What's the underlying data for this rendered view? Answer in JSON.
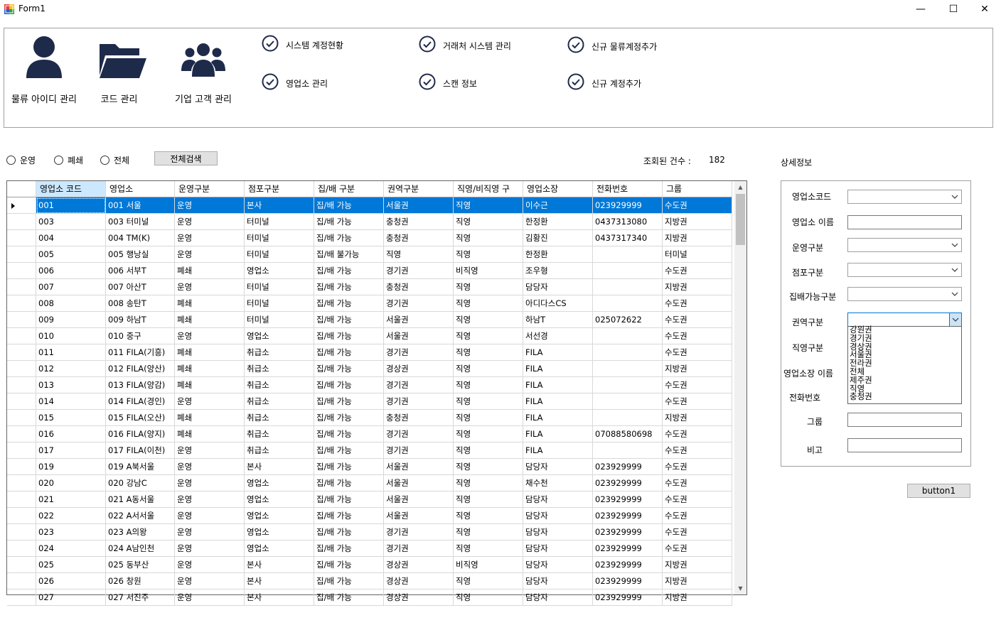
{
  "window": {
    "title": "Form1",
    "minimize_glyph": "—",
    "maximize_glyph": "☐",
    "close_glyph": "✕"
  },
  "nav": {
    "big_buttons": [
      {
        "label": "물류 아이디 관리",
        "icon": "user-icon"
      },
      {
        "label": "코드 관리",
        "icon": "folder-icon"
      },
      {
        "label": "기업 고객 관리",
        "icon": "users-group-icon"
      }
    ],
    "check_items": [
      {
        "label": "시스템 계정현황"
      },
      {
        "label": "거래처 시스템 관리"
      },
      {
        "label": "신규 물류계정추가"
      },
      {
        "label": "영업소 관리"
      },
      {
        "label": "스캔 정보"
      },
      {
        "label": "신규 계정추가"
      }
    ]
  },
  "filters": {
    "radios": [
      "운영",
      "폐쇄",
      "전체"
    ],
    "search_button": "전체검색",
    "count_label": "조회된 건수 :",
    "count_value": "182"
  },
  "grid": {
    "columns": [
      "영업소 코드",
      "영업소",
      "운영구분",
      "점포구분",
      "집/배 구분",
      "권역구분",
      "직영/비직영 구",
      "영업소장",
      "전화번호",
      "그룹"
    ],
    "rows": [
      [
        "001",
        "001 서울",
        "운영",
        "본사",
        "집/배 가능",
        "서울권",
        "직영",
        "이수근",
        "023929999",
        "수도권"
      ],
      [
        "003",
        "003 터미널",
        "운영",
        "터미널",
        "집/배 가능",
        "충청권",
        "직영",
        "한정환",
        "0437313080",
        "지방권"
      ],
      [
        "004",
        "004 TM(K)",
        "운영",
        "터미널",
        "집/배 가능",
        "충청권",
        "직영",
        "김황진",
        "0437317340",
        "지방권"
      ],
      [
        "005",
        "005 행낭실",
        "운영",
        "터미널",
        "집/배 불가능",
        "직영",
        "직영",
        "한정환",
        "",
        "터미널"
      ],
      [
        "006",
        "006 서부T",
        "폐쇄",
        "영업소",
        "집/배 가능",
        "경기권",
        "비직영",
        "조우형",
        "",
        "수도권"
      ],
      [
        "007",
        "007 아산T",
        "운영",
        "터미널",
        "집/배 가능",
        "충청권",
        "직영",
        "담당자",
        "",
        "지방권"
      ],
      [
        "008",
        "008 송탄T",
        "폐쇄",
        "터미널",
        "집/배 가능",
        "경기권",
        "직영",
        "아디다스CS",
        "",
        "수도권"
      ],
      [
        "009",
        "009 하남T",
        "폐쇄",
        "터미널",
        "집/배 가능",
        "서울권",
        "직영",
        "하남T",
        "025072622",
        "수도권"
      ],
      [
        "010",
        "010 중구",
        "운영",
        "영업소",
        "집/배 가능",
        "서울권",
        "직영",
        "서선경",
        "",
        "수도권"
      ],
      [
        "011",
        "011 FILA(기흥)",
        "폐쇄",
        "취급소",
        "집/배 가능",
        "경기권",
        "직영",
        "FILA",
        "",
        "수도권"
      ],
      [
        "012",
        "012 FILA(양산)",
        "폐쇄",
        "취급소",
        "집/배 가능",
        "경상권",
        "직영",
        "FILA",
        "",
        "지방권"
      ],
      [
        "013",
        "013 FILA(양감)",
        "폐쇄",
        "취급소",
        "집/배 가능",
        "경기권",
        "직영",
        "FILA",
        "",
        "수도권"
      ],
      [
        "014",
        "014 FILA(경인)",
        "운영",
        "취급소",
        "집/배 가능",
        "경기권",
        "직영",
        "FILA",
        "",
        "수도권"
      ],
      [
        "015",
        "015 FILA(오산)",
        "폐쇄",
        "취급소",
        "집/배 가능",
        "충청권",
        "직영",
        "FILA",
        "",
        "지방권"
      ],
      [
        "016",
        "016 FILA(양지)",
        "폐쇄",
        "취급소",
        "집/배 가능",
        "경기권",
        "직영",
        "FILA",
        "07088580698",
        "수도권"
      ],
      [
        "017",
        "017 FILA(이천)",
        "운영",
        "취급소",
        "집/배 가능",
        "경기권",
        "직영",
        "FILA",
        "",
        "수도권"
      ],
      [
        "019",
        "019 A북서울",
        "운영",
        "본사",
        "집/배 가능",
        "서울권",
        "직영",
        "담당자",
        "023929999",
        "수도권"
      ],
      [
        "020",
        "020 강남C",
        "운영",
        "영업소",
        "집/배 가능",
        "서울권",
        "직영",
        "채수천",
        "023929999",
        "수도권"
      ],
      [
        "021",
        "021 A동서울",
        "운영",
        "영업소",
        "집/배 가능",
        "서울권",
        "직영",
        "담당자",
        "023929999",
        "수도권"
      ],
      [
        "022",
        "022 A서서울",
        "운영",
        "영업소",
        "집/배 가능",
        "서울권",
        "직영",
        "담당자",
        "023929999",
        "수도권"
      ],
      [
        "023",
        "023 A의왕",
        "운영",
        "영업소",
        "집/배 가능",
        "경기권",
        "직영",
        "담당자",
        "023929999",
        "수도권"
      ],
      [
        "024",
        "024 A남인천",
        "운영",
        "영업소",
        "집/배 가능",
        "경기권",
        "직영",
        "담당자",
        "023929999",
        "수도권"
      ],
      [
        "025",
        "025 동부산",
        "운영",
        "본사",
        "집/배 가능",
        "경상권",
        "비직영",
        "담당자",
        "023929999",
        "지방권"
      ],
      [
        "026",
        "026 창원",
        "운영",
        "본사",
        "집/배 가능",
        "경상권",
        "직영",
        "담당자",
        "023929999",
        "지방권"
      ],
      [
        "027",
        "027 서진주",
        "운영",
        "본사",
        "집/배 가능",
        "경상권",
        "직영",
        "담당자",
        "023929999",
        "지방권"
      ]
    ]
  },
  "detail": {
    "title": "상세정보",
    "fields": [
      "영업소코드",
      "영업소 이름",
      "운영구분",
      "점포구분",
      "집배가능구분",
      "권역구분",
      "직영구분",
      "영업소장 이름",
      "전화번호",
      "그룹",
      "비고"
    ],
    "dropdown_options": [
      "강원권",
      "경기권",
      "경상권",
      "서울권",
      "전라권",
      "전체",
      "제주권",
      "직영",
      "충청권"
    ],
    "button1": "button1"
  }
}
